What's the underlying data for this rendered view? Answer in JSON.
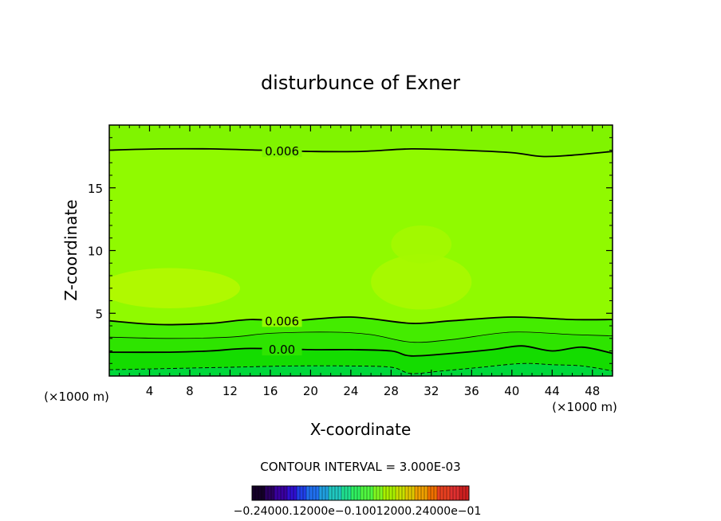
{
  "chart_data": {
    "type": "contour",
    "title": "disturbunce of Exner",
    "xlabel": "X-coordinate",
    "ylabel": "Z-coordinate",
    "x_unit_left": "(×1000 m)",
    "x_unit_right": "(×1000 m)",
    "xlim": [
      0,
      50
    ],
    "ylim": [
      0,
      20
    ],
    "x_ticks": [
      4,
      8,
      12,
      16,
      20,
      24,
      28,
      32,
      36,
      40,
      44,
      48
    ],
    "y_ticks": [
      5,
      10,
      15
    ],
    "contour_interval_text": "CONTOUR INTERVAL = 3.000E-03",
    "contours": [
      {
        "level": 0.006,
        "label": "0.006",
        "style": "solid",
        "points": [
          [
            0,
            18.0
          ],
          [
            5,
            18.1
          ],
          [
            10,
            18.1
          ],
          [
            15,
            18.0
          ],
          [
            20,
            17.9
          ],
          [
            25,
            17.9
          ],
          [
            30,
            18.1
          ],
          [
            35,
            18.0
          ],
          [
            40,
            17.8
          ],
          [
            43,
            17.5
          ],
          [
            46,
            17.6
          ],
          [
            50,
            17.9
          ]
        ]
      },
      {
        "level": 0.006,
        "label": "0.006",
        "style": "solid",
        "points": [
          [
            0,
            4.4
          ],
          [
            5,
            4.1
          ],
          [
            10,
            4.2
          ],
          [
            14,
            4.5
          ],
          [
            18,
            4.4
          ],
          [
            24,
            4.7
          ],
          [
            30,
            4.2
          ],
          [
            34,
            4.4
          ],
          [
            40,
            4.7
          ],
          [
            46,
            4.5
          ],
          [
            50,
            4.5
          ]
        ]
      },
      {
        "level": 0.003,
        "label": "",
        "style": "thin",
        "points": [
          [
            0,
            3.1
          ],
          [
            6,
            3.0
          ],
          [
            12,
            3.1
          ],
          [
            16,
            3.4
          ],
          [
            22,
            3.5
          ],
          [
            26,
            3.3
          ],
          [
            30,
            2.7
          ],
          [
            34,
            2.9
          ],
          [
            40,
            3.5
          ],
          [
            46,
            3.3
          ],
          [
            50,
            3.2
          ]
        ]
      },
      {
        "level": 0.0,
        "label": "0.00",
        "style": "solid",
        "points": [
          [
            0,
            1.9
          ],
          [
            6,
            1.9
          ],
          [
            10,
            2.0
          ],
          [
            14,
            2.2
          ],
          [
            20,
            2.1
          ],
          [
            24,
            2.1
          ],
          [
            28,
            2.0
          ],
          [
            30,
            1.6
          ],
          [
            34,
            1.8
          ],
          [
            38,
            2.1
          ],
          [
            41,
            2.4
          ],
          [
            44,
            2.0
          ],
          [
            47,
            2.3
          ],
          [
            50,
            1.8
          ]
        ]
      },
      {
        "level": -0.003,
        "label": "",
        "style": "dashed",
        "points": [
          [
            0,
            0.5
          ],
          [
            6,
            0.6
          ],
          [
            12,
            0.7
          ],
          [
            18,
            0.8
          ],
          [
            24,
            0.8
          ],
          [
            28,
            0.7
          ],
          [
            30,
            0.2
          ],
          [
            33,
            0.4
          ],
          [
            37,
            0.7
          ],
          [
            41,
            1.0
          ],
          [
            44,
            0.9
          ],
          [
            47,
            0.8
          ],
          [
            50,
            0.4
          ]
        ]
      }
    ],
    "fill_regions": [
      {
        "name": "top",
        "color": "#80f400",
        "ybot_from": 0,
        "ytop": 20
      },
      {
        "name": "upper-mid",
        "color": "#90fa00"
      },
      {
        "name": "low-band-1",
        "color": "#44ec00"
      },
      {
        "name": "low-band-2",
        "color": "#2ee400"
      },
      {
        "name": "low-band-3",
        "color": "#14dc00"
      },
      {
        "name": "bottom",
        "color": "#00d83a"
      }
    ],
    "highlights": [
      {
        "cx": 6,
        "cy": 7,
        "rx": 7,
        "ry": 1.6,
        "color": "#b4f800"
      },
      {
        "cx": 31,
        "cy": 7.5,
        "rx": 5,
        "ry": 2.2,
        "color": "#aaf800"
      },
      {
        "cx": 31,
        "cy": 10.5,
        "rx": 3,
        "ry": 1.5,
        "color": "#a4f800"
      }
    ],
    "colorbar": {
      "labels_text": "−0.24000e−01  −0.12000e−01  0.0  0.12000e−01  0.24000e−01",
      "labels_display": "−0.24000.12000e−0.10012000.24000e−01",
      "colors": [
        "#140028",
        "#2a0060",
        "#3a00a0",
        "#3010d0",
        "#2040e8",
        "#2070f0",
        "#20a0e0",
        "#20c8c0",
        "#20e090",
        "#30f060",
        "#50f840",
        "#80f820",
        "#a8f000",
        "#c8e000",
        "#e0c800",
        "#f0a000",
        "#f07000",
        "#e84020",
        "#e03030",
        "#d02020"
      ]
    },
    "colors": {
      "background": "#ffffff",
      "axis": "#000000"
    }
  }
}
